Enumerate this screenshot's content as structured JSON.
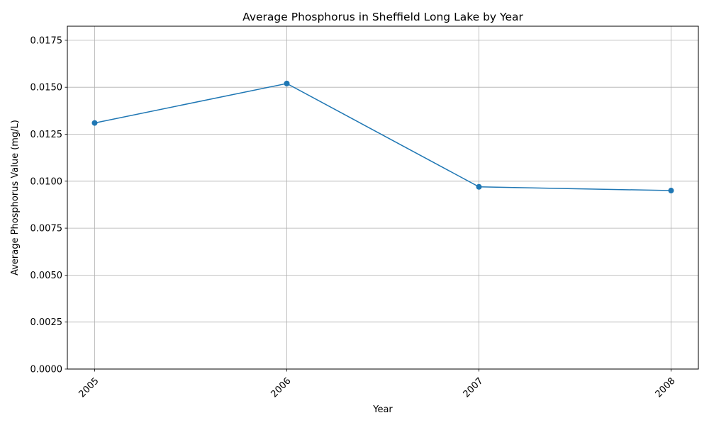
{
  "chart_data": {
    "type": "line",
    "title": "Average Phosphorus in Sheffield Long Lake by Year",
    "xlabel": "Year",
    "ylabel": "Average Phosphorus Value (mg/L)",
    "categories": [
      "2005",
      "2006",
      "2007",
      "2008"
    ],
    "series": [
      {
        "values": [
          0.0131,
          0.0152,
          0.0097,
          0.0095
        ]
      }
    ],
    "ylim": [
      0,
      0.01825
    ],
    "yticks": [
      "0.0000",
      "0.0025",
      "0.0050",
      "0.0075",
      "0.0100",
      "0.0125",
      "0.0150",
      "0.0175"
    ],
    "grid": true,
    "marker": "circle",
    "color": "#1f77b4"
  }
}
